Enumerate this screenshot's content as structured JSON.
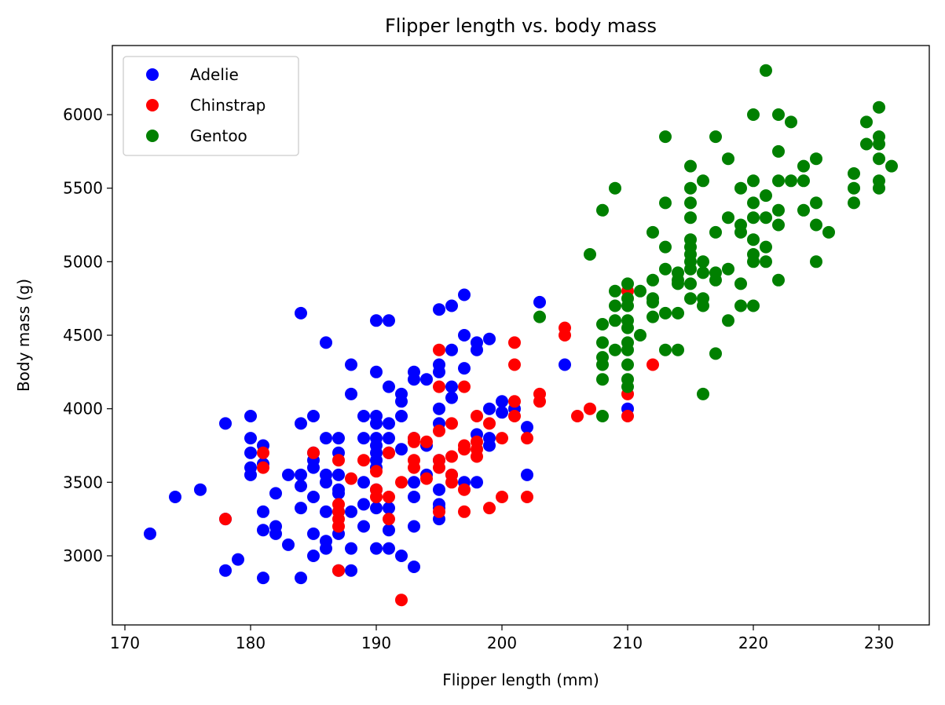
{
  "chart_data": {
    "type": "scatter",
    "title": "Flipper length vs. body mass",
    "xlabel": "Flipper length (mm)",
    "ylabel": "Body mass (g)",
    "xlim": [
      169,
      234
    ],
    "ylim": [
      2530,
      6470
    ],
    "xticks": [
      170,
      180,
      190,
      200,
      210,
      220,
      230
    ],
    "yticks": [
      3000,
      3500,
      4000,
      4500,
      5000,
      5500,
      6000
    ],
    "grid": false,
    "legend_position": "top-left",
    "series": [
      {
        "name": "Adelie",
        "color": "#0000ff",
        "points": [
          [
            172,
            3150
          ],
          [
            174,
            3400
          ],
          [
            176,
            3450
          ],
          [
            178,
            3900
          ],
          [
            178,
            2900
          ],
          [
            178,
            3250
          ],
          [
            179,
            2975
          ],
          [
            180,
            3950
          ],
          [
            180,
            3800
          ],
          [
            180,
            3700
          ],
          [
            180,
            3600
          ],
          [
            180,
            3550
          ],
          [
            181,
            3750
          ],
          [
            181,
            3625
          ],
          [
            181,
            3300
          ],
          [
            181,
            3175
          ],
          [
            181,
            2850
          ],
          [
            182,
            3425
          ],
          [
            182,
            3200
          ],
          [
            182,
            3150
          ],
          [
            183,
            3550
          ],
          [
            183,
            3075
          ],
          [
            184,
            4650
          ],
          [
            184,
            3900
          ],
          [
            184,
            3550
          ],
          [
            184,
            3475
          ],
          [
            184,
            3325
          ],
          [
            184,
            2850
          ],
          [
            185,
            3950
          ],
          [
            185,
            3700
          ],
          [
            185,
            3650
          ],
          [
            185,
            3600
          ],
          [
            185,
            3400
          ],
          [
            185,
            3150
          ],
          [
            185,
            3000
          ],
          [
            186,
            4450
          ],
          [
            186,
            3800
          ],
          [
            186,
            3550
          ],
          [
            186,
            3500
          ],
          [
            186,
            3300
          ],
          [
            186,
            3100
          ],
          [
            186,
            3050
          ],
          [
            187,
            3800
          ],
          [
            187,
            3700
          ],
          [
            187,
            3550
          ],
          [
            187,
            3450
          ],
          [
            187,
            3425
          ],
          [
            187,
            3300
          ],
          [
            187,
            3150
          ],
          [
            187,
            2900
          ],
          [
            188,
            4300
          ],
          [
            188,
            4100
          ],
          [
            188,
            3300
          ],
          [
            188,
            3050
          ],
          [
            188,
            2900
          ],
          [
            189,
            3950
          ],
          [
            189,
            3800
          ],
          [
            189,
            3500
          ],
          [
            189,
            3350
          ],
          [
            189,
            3200
          ],
          [
            190,
            4600
          ],
          [
            190,
            4250
          ],
          [
            190,
            3950
          ],
          [
            190,
            3900
          ],
          [
            190,
            3800
          ],
          [
            190,
            3750
          ],
          [
            190,
            3700
          ],
          [
            190,
            3650
          ],
          [
            190,
            3600
          ],
          [
            190,
            3450
          ],
          [
            190,
            3325
          ],
          [
            190,
            3050
          ],
          [
            191,
            4600
          ],
          [
            191,
            4150
          ],
          [
            191,
            3900
          ],
          [
            191,
            3800
          ],
          [
            191,
            3700
          ],
          [
            191,
            3325
          ],
          [
            191,
            3175
          ],
          [
            191,
            3050
          ],
          [
            192,
            4100
          ],
          [
            192,
            4050
          ],
          [
            192,
            3950
          ],
          [
            192,
            3725
          ],
          [
            192,
            3000
          ],
          [
            193,
            4250
          ],
          [
            193,
            4200
          ],
          [
            193,
            3800
          ],
          [
            193,
            3500
          ],
          [
            193,
            3400
          ],
          [
            193,
            3200
          ],
          [
            193,
            2925
          ],
          [
            194,
            4200
          ],
          [
            194,
            3750
          ],
          [
            194,
            3550
          ],
          [
            195,
            4675
          ],
          [
            195,
            4300
          ],
          [
            195,
            4250
          ],
          [
            195,
            4000
          ],
          [
            195,
            3900
          ],
          [
            195,
            3650
          ],
          [
            195,
            3450
          ],
          [
            195,
            3350
          ],
          [
            195,
            3325
          ],
          [
            195,
            3250
          ],
          [
            196,
            4700
          ],
          [
            196,
            4400
          ],
          [
            196,
            4150
          ],
          [
            196,
            4075
          ],
          [
            196,
            3550
          ],
          [
            197,
            4775
          ],
          [
            197,
            4500
          ],
          [
            197,
            4275
          ],
          [
            197,
            3500
          ],
          [
            198,
            4450
          ],
          [
            198,
            4400
          ],
          [
            198,
            3825
          ],
          [
            198,
            3500
          ],
          [
            199,
            4475
          ],
          [
            199,
            4000
          ],
          [
            199,
            3800
          ],
          [
            199,
            3750
          ],
          [
            200,
            4050
          ],
          [
            200,
            3975
          ],
          [
            201,
            4000
          ],
          [
            202,
            3875
          ],
          [
            202,
            3550
          ],
          [
            203,
            4725
          ],
          [
            205,
            4300
          ],
          [
            210,
            4000
          ]
        ]
      },
      {
        "name": "Chinstrap",
        "color": "#ff0000",
        "points": [
          [
            178,
            3250
          ],
          [
            181,
            3700
          ],
          [
            181,
            3600
          ],
          [
            185,
            3700
          ],
          [
            187,
            3650
          ],
          [
            187,
            3350
          ],
          [
            187,
            3300
          ],
          [
            187,
            3250
          ],
          [
            187,
            3200
          ],
          [
            187,
            2900
          ],
          [
            188,
            3525
          ],
          [
            189,
            3650
          ],
          [
            190,
            3575
          ],
          [
            190,
            3450
          ],
          [
            190,
            3400
          ],
          [
            191,
            3700
          ],
          [
            191,
            3400
          ],
          [
            191,
            3250
          ],
          [
            192,
            3500
          ],
          [
            192,
            2700
          ],
          [
            193,
            3800
          ],
          [
            193,
            3775
          ],
          [
            193,
            3650
          ],
          [
            193,
            3600
          ],
          [
            194,
            3775
          ],
          [
            194,
            3525
          ],
          [
            195,
            4400
          ],
          [
            195,
            4150
          ],
          [
            195,
            3850
          ],
          [
            195,
            3650
          ],
          [
            195,
            3600
          ],
          [
            195,
            3300
          ],
          [
            196,
            3900
          ],
          [
            196,
            3675
          ],
          [
            196,
            3550
          ],
          [
            196,
            3500
          ],
          [
            197,
            4150
          ],
          [
            197,
            3750
          ],
          [
            197,
            3725
          ],
          [
            197,
            3450
          ],
          [
            197,
            3300
          ],
          [
            198,
            3950
          ],
          [
            198,
            3775
          ],
          [
            198,
            3725
          ],
          [
            198,
            3675
          ],
          [
            199,
            3900
          ],
          [
            199,
            3325
          ],
          [
            200,
            3800
          ],
          [
            200,
            3400
          ],
          [
            201,
            4450
          ],
          [
            201,
            4300
          ],
          [
            201,
            4050
          ],
          [
            201,
            3950
          ],
          [
            202,
            3800
          ],
          [
            202,
            3400
          ],
          [
            203,
            4100
          ],
          [
            203,
            4050
          ],
          [
            205,
            4550
          ],
          [
            205,
            4500
          ],
          [
            206,
            3950
          ],
          [
            207,
            4000
          ],
          [
            210,
            4800
          ],
          [
            210,
            4100
          ],
          [
            210,
            3950
          ],
          [
            212,
            4300
          ]
        ]
      },
      {
        "name": "Gentoo",
        "color": "#008000",
        "points": [
          [
            203,
            4625
          ],
          [
            207,
            5050
          ],
          [
            208,
            5350
          ],
          [
            208,
            4575
          ],
          [
            208,
            4450
          ],
          [
            208,
            4350
          ],
          [
            208,
            4300
          ],
          [
            208,
            4200
          ],
          [
            208,
            3950
          ],
          [
            209,
            5500
          ],
          [
            209,
            4800
          ],
          [
            209,
            4700
          ],
          [
            209,
            4600
          ],
          [
            209,
            4400
          ],
          [
            210,
            4850
          ],
          [
            210,
            4750
          ],
          [
            210,
            4700
          ],
          [
            210,
            4600
          ],
          [
            210,
            4550
          ],
          [
            210,
            4450
          ],
          [
            210,
            4400
          ],
          [
            210,
            4300
          ],
          [
            210,
            4200
          ],
          [
            210,
            4150
          ],
          [
            211,
            4800
          ],
          [
            211,
            4500
          ],
          [
            212,
            5200
          ],
          [
            212,
            4875
          ],
          [
            212,
            4750
          ],
          [
            212,
            4725
          ],
          [
            212,
            4625
          ],
          [
            213,
            5850
          ],
          [
            213,
            5400
          ],
          [
            213,
            5100
          ],
          [
            213,
            4950
          ],
          [
            213,
            4650
          ],
          [
            213,
            4400
          ],
          [
            214,
            4925
          ],
          [
            214,
            4875
          ],
          [
            214,
            4850
          ],
          [
            214,
            4650
          ],
          [
            214,
            4400
          ],
          [
            215,
            5650
          ],
          [
            215,
            5500
          ],
          [
            215,
            5400
          ],
          [
            215,
            5300
          ],
          [
            215,
            5150
          ],
          [
            215,
            5100
          ],
          [
            215,
            5050
          ],
          [
            215,
            5000
          ],
          [
            215,
            4950
          ],
          [
            215,
            4850
          ],
          [
            215,
            4750
          ],
          [
            216,
            5550
          ],
          [
            216,
            5000
          ],
          [
            216,
            4925
          ],
          [
            216,
            4750
          ],
          [
            216,
            4700
          ],
          [
            216,
            4100
          ],
          [
            217,
            5850
          ],
          [
            217,
            5200
          ],
          [
            217,
            4925
          ],
          [
            217,
            4875
          ],
          [
            217,
            4375
          ],
          [
            218,
            5700
          ],
          [
            218,
            5300
          ],
          [
            218,
            4950
          ],
          [
            218,
            4600
          ],
          [
            219,
            5500
          ],
          [
            219,
            5250
          ],
          [
            219,
            5200
          ],
          [
            219,
            4850
          ],
          [
            219,
            4700
          ],
          [
            220,
            6000
          ],
          [
            220,
            5550
          ],
          [
            220,
            5400
          ],
          [
            220,
            5300
          ],
          [
            220,
            5150
          ],
          [
            220,
            5050
          ],
          [
            220,
            5000
          ],
          [
            220,
            4700
          ],
          [
            221,
            6300
          ],
          [
            221,
            5450
          ],
          [
            221,
            5300
          ],
          [
            221,
            5100
          ],
          [
            221,
            5000
          ],
          [
            222,
            6000
          ],
          [
            222,
            5750
          ],
          [
            222,
            5550
          ],
          [
            222,
            5350
          ],
          [
            222,
            5250
          ],
          [
            222,
            4875
          ],
          [
            223,
            5950
          ],
          [
            223,
            5550
          ],
          [
            224,
            5650
          ],
          [
            224,
            5550
          ],
          [
            224,
            5350
          ],
          [
            225,
            5700
          ],
          [
            225,
            5400
          ],
          [
            225,
            5250
          ],
          [
            225,
            5000
          ],
          [
            226,
            5200
          ],
          [
            228,
            5600
          ],
          [
            228,
            5500
          ],
          [
            228,
            5400
          ],
          [
            229,
            5950
          ],
          [
            229,
            5800
          ],
          [
            230,
            6050
          ],
          [
            230,
            5850
          ],
          [
            230,
            5800
          ],
          [
            230,
            5700
          ],
          [
            230,
            5550
          ],
          [
            230,
            5500
          ],
          [
            231,
            5650
          ]
        ]
      }
    ]
  }
}
